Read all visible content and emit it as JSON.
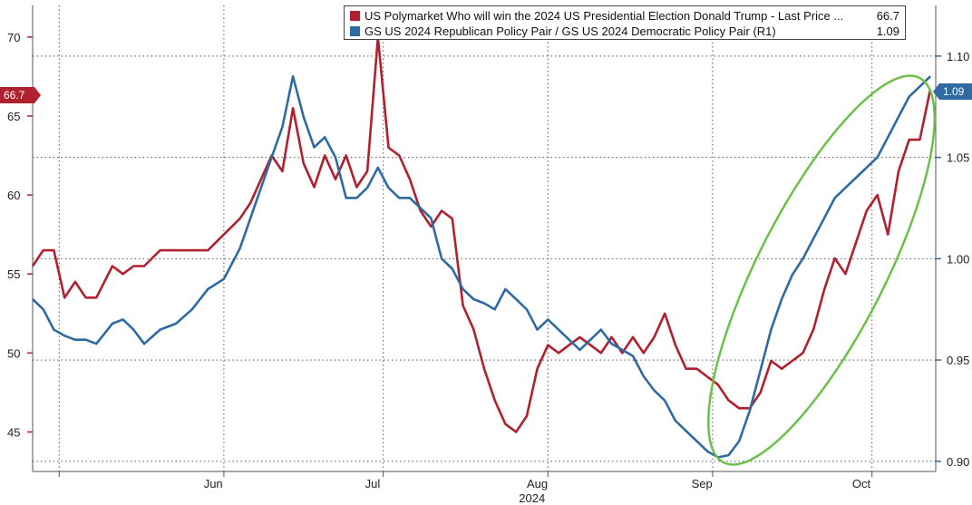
{
  "legend": [
    {
      "name": "US Polymarket Who will win the 2024 US Presidential Election Donald Trump - Last Price ...",
      "value": "66.7",
      "color": "#b0202e"
    },
    {
      "name": "GS US 2024 Republican Policy Pair / GS US 2024 Democratic Policy Pair (R1)",
      "value": "1.09",
      "color": "#2f6aa3"
    }
  ],
  "last_price_tags": {
    "left": "66.7",
    "right": "1.09"
  },
  "chart_data": {
    "type": "line",
    "xlabel": "2024",
    "x_ticks": [
      "Jun",
      "Jul",
      "Aug",
      "Sep",
      "Oct"
    ],
    "y_left": {
      "ticks": [
        "45",
        "50",
        "55",
        "60",
        "65",
        "70"
      ],
      "ylim": [
        42.5,
        72
      ]
    },
    "y_right": {
      "ticks": [
        "0.90",
        "0.95",
        "1.00",
        "1.05",
        "1.10"
      ],
      "ylim": [
        0.895,
        1.125
      ]
    },
    "x_range": [
      "2024-05-13",
      "2024-10-30"
    ],
    "grid": true,
    "legend_position": "top",
    "highlight": {
      "type": "ellipse",
      "color": "#6cc04a"
    },
    "series": [
      {
        "name": "US Polymarket Who will win the 2024 US Presidential Election Donald Trump - Last Price",
        "axis": "left",
        "color": "#b0202e",
        "x": [
          "2024-05-13",
          "2024-05-15",
          "2024-05-17",
          "2024-05-19",
          "2024-05-21",
          "2024-05-23",
          "2024-05-25",
          "2024-05-28",
          "2024-05-30",
          "2024-06-01",
          "2024-06-03",
          "2024-06-06",
          "2024-06-09",
          "2024-06-12",
          "2024-06-15",
          "2024-06-18",
          "2024-06-21",
          "2024-06-23",
          "2024-06-25",
          "2024-06-27",
          "2024-06-29",
          "2024-07-01",
          "2024-07-03",
          "2024-07-05",
          "2024-07-07",
          "2024-07-09",
          "2024-07-11",
          "2024-07-13",
          "2024-07-15",
          "2024-07-17",
          "2024-07-19",
          "2024-07-21",
          "2024-07-23",
          "2024-07-25",
          "2024-07-27",
          "2024-07-29",
          "2024-07-31",
          "2024-08-02",
          "2024-08-04",
          "2024-08-06",
          "2024-08-08",
          "2024-08-10",
          "2024-08-12",
          "2024-08-14",
          "2024-08-16",
          "2024-08-18",
          "2024-08-20",
          "2024-08-22",
          "2024-08-24",
          "2024-08-26",
          "2024-08-28",
          "2024-08-30",
          "2024-09-01",
          "2024-09-03",
          "2024-09-05",
          "2024-09-07",
          "2024-09-09",
          "2024-09-11",
          "2024-09-13",
          "2024-09-15",
          "2024-09-17",
          "2024-09-19",
          "2024-09-21",
          "2024-09-23",
          "2024-09-25",
          "2024-09-27",
          "2024-09-29",
          "2024-10-01",
          "2024-10-03",
          "2024-10-05",
          "2024-10-07",
          "2024-10-09",
          "2024-10-11",
          "2024-10-13",
          "2024-10-15",
          "2024-10-17",
          "2024-10-19",
          "2024-10-21",
          "2024-10-23",
          "2024-10-25",
          "2024-10-27",
          "2024-10-29"
        ],
        "values": [
          55.5,
          56.5,
          56.5,
          53.5,
          54.5,
          53.5,
          53.5,
          55.5,
          55.0,
          55.5,
          55.5,
          56.5,
          56.5,
          56.5,
          56.5,
          57.5,
          58.5,
          59.5,
          61.0,
          62.5,
          61.5,
          65.5,
          62.0,
          60.5,
          62.5,
          61.0,
          62.5,
          60.5,
          61.5,
          70.0,
          63.0,
          62.5,
          61.0,
          59.0,
          58.0,
          59.0,
          58.5,
          53.0,
          51.5,
          49.0,
          47.0,
          45.5,
          45.0,
          46.0,
          49.0,
          50.5,
          50.0,
          50.5,
          51.0,
          50.5,
          50.0,
          51.0,
          50.0,
          51.0,
          50.0,
          51.0,
          52.5,
          50.5,
          49.0,
          49.0,
          48.5,
          48.0,
          47.0,
          46.5,
          46.5,
          47.5,
          49.5,
          49.0,
          49.5,
          50.0,
          51.5,
          54.0,
          56.0,
          55.0,
          57.0,
          59.0,
          60.0,
          57.5,
          61.5,
          63.5,
          63.5,
          66.7
        ]
      },
      {
        "name": "GS US 2024 Republican Policy Pair / GS US 2024 Democratic Policy Pair",
        "axis": "right",
        "color": "#2f6aa3",
        "x": [
          "2024-05-13",
          "2024-05-15",
          "2024-05-17",
          "2024-05-19",
          "2024-05-21",
          "2024-05-23",
          "2024-05-25",
          "2024-05-28",
          "2024-05-30",
          "2024-06-01",
          "2024-06-03",
          "2024-06-06",
          "2024-06-09",
          "2024-06-12",
          "2024-06-15",
          "2024-06-18",
          "2024-06-21",
          "2024-06-23",
          "2024-06-25",
          "2024-06-27",
          "2024-06-29",
          "2024-07-01",
          "2024-07-03",
          "2024-07-05",
          "2024-07-07",
          "2024-07-09",
          "2024-07-11",
          "2024-07-13",
          "2024-07-15",
          "2024-07-17",
          "2024-07-19",
          "2024-07-21",
          "2024-07-23",
          "2024-07-25",
          "2024-07-27",
          "2024-07-29",
          "2024-07-31",
          "2024-08-02",
          "2024-08-04",
          "2024-08-06",
          "2024-08-08",
          "2024-08-10",
          "2024-08-12",
          "2024-08-14",
          "2024-08-16",
          "2024-08-18",
          "2024-08-20",
          "2024-08-22",
          "2024-08-24",
          "2024-08-26",
          "2024-08-28",
          "2024-08-30",
          "2024-09-01",
          "2024-09-03",
          "2024-09-05",
          "2024-09-07",
          "2024-09-09",
          "2024-09-11",
          "2024-09-13",
          "2024-09-15",
          "2024-09-17",
          "2024-09-19",
          "2024-09-21",
          "2024-09-23",
          "2024-09-25",
          "2024-09-27",
          "2024-09-29",
          "2024-10-01",
          "2024-10-03",
          "2024-10-05",
          "2024-10-07",
          "2024-10-09",
          "2024-10-11",
          "2024-10-13",
          "2024-10-15",
          "2024-10-17",
          "2024-10-19",
          "2024-10-21",
          "2024-10-23",
          "2024-10-25",
          "2024-10-27",
          "2024-10-29"
        ],
        "values": [
          0.98,
          0.975,
          0.965,
          0.962,
          0.96,
          0.96,
          0.958,
          0.968,
          0.97,
          0.965,
          0.958,
          0.965,
          0.968,
          0.975,
          0.985,
          0.99,
          1.005,
          1.02,
          1.035,
          1.05,
          1.065,
          1.09,
          1.07,
          1.055,
          1.06,
          1.05,
          1.03,
          1.03,
          1.035,
          1.045,
          1.035,
          1.03,
          1.03,
          1.025,
          1.02,
          1.0,
          0.995,
          0.985,
          0.98,
          0.978,
          0.975,
          0.985,
          0.98,
          0.975,
          0.965,
          0.97,
          0.965,
          0.96,
          0.955,
          0.96,
          0.965,
          0.958,
          0.955,
          0.952,
          0.942,
          0.935,
          0.93,
          0.92,
          0.915,
          0.91,
          0.905,
          0.902,
          0.903,
          0.91,
          0.925,
          0.945,
          0.965,
          0.98,
          0.992,
          1.0,
          1.01,
          1.02,
          1.03,
          1.035,
          1.04,
          1.045,
          1.05,
          1.06,
          1.07,
          1.08,
          1.085,
          1.09
        ]
      }
    ]
  }
}
